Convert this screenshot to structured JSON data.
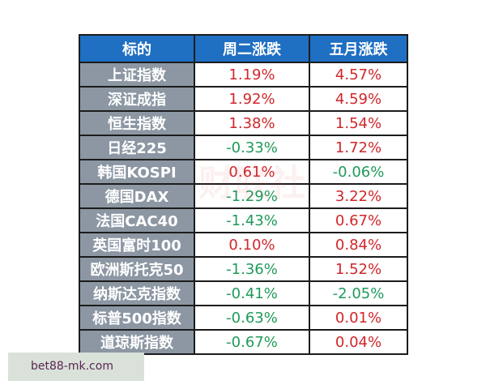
{
  "headers": [
    "标的",
    "周二涨跌",
    "五月涨跌"
  ],
  "rows": [
    {
      "name": "上证指数",
      "tue": "1.19%",
      "may": "4.57%"
    },
    {
      "name": "深证成指",
      "tue": "1.92%",
      "may": "4.59%"
    },
    {
      "name": "恒生指数",
      "tue": "1.38%",
      "may": "1.54%"
    },
    {
      "name": "日经225",
      "tue": "-0.33%",
      "may": "1.72%"
    },
    {
      "name": "韩国KOSPI",
      "tue": "0.61%",
      "may": "-0.06%"
    },
    {
      "name": "德国DAX",
      "tue": "-1.29%",
      "may": "3.22%"
    },
    {
      "name": "法国CAC40",
      "tue": "-1.43%",
      "may": "0.67%"
    },
    {
      "name": "英国富时100",
      "tue": "0.10%",
      "may": "0.84%"
    },
    {
      "name": "欧洲斯托克50",
      "tue": "-1.36%",
      "may": "1.52%"
    },
    {
      "name": "纳斯达克指数",
      "tue": "-0.41%",
      "may": "-2.05%"
    },
    {
      "name": "标普500指数",
      "tue": "-0.63%",
      "may": "0.01%"
    },
    {
      "name": "道琼斯指数",
      "tue": "-0.67%",
      "may": "0.04%"
    }
  ],
  "colors": {
    "header": "#1f6fc2",
    "label_bg": "#8c97a3",
    "up": "#d0262b",
    "down": "#1f9a5a"
  },
  "watermark_logo": "财联社",
  "site_label": "bet88-mk.com"
}
